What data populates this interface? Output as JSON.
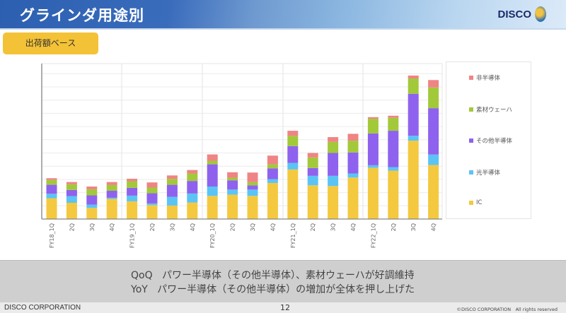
{
  "header": {
    "title": "グラインダ用途別",
    "logo_text": "DISCO"
  },
  "tag": "出荷額ベース",
  "chart_data": {
    "type": "bar",
    "stacked": true,
    "title": "",
    "xlabel": "",
    "ylabel": "",
    "y_unit": "gridlines (no y tick labels shown)",
    "ylim": [
      0,
      11
    ],
    "grid": true,
    "legend_position": "right",
    "categories": [
      "FY18_1Q",
      "2Q",
      "3Q",
      "4Q",
      "FY19_1Q",
      "2Q",
      "3Q",
      "4Q",
      "FY20_1Q",
      "2Q",
      "3Q",
      "4Q",
      "FY21_1Q",
      "2Q",
      "3Q",
      "4Q",
      "FY22_1Q",
      "2Q",
      "3Q",
      "4Q"
    ],
    "series": [
      {
        "name": "IC",
        "color": "#f4c93f",
        "values": [
          1.57,
          1.23,
          0.84,
          1.52,
          1.34,
          1.05,
          1.02,
          1.25,
          1.75,
          1.84,
          1.75,
          2.73,
          3.75,
          2.55,
          2.5,
          3.14,
          3.88,
          3.66,
          5.93,
          4.09
        ]
      },
      {
        "name": "光半導体",
        "color": "#5bc4f5",
        "values": [
          0.34,
          0.5,
          0.25,
          0.09,
          0.43,
          0.13,
          0.66,
          0.68,
          0.71,
          0.39,
          0.48,
          0.29,
          0.5,
          0.72,
          0.77,
          0.31,
          0.19,
          0.27,
          0.37,
          0.79
        ]
      },
      {
        "name": "その他半導体",
        "color": "#8e62ee",
        "values": [
          0.68,
          0.47,
          0.7,
          0.53,
          0.59,
          0.77,
          0.91,
          0.95,
          1.68,
          0.7,
          0.32,
          0.82,
          1.27,
          0.59,
          1.73,
          1.59,
          2.41,
          2.75,
          3.18,
          3.51
        ]
      },
      {
        "name": "素材ウェーハ",
        "color": "#a2c93a",
        "values": [
          0.36,
          0.43,
          0.46,
          0.43,
          0.5,
          0.43,
          0.45,
          0.57,
          0.27,
          0.2,
          0.25,
          0.3,
          0.77,
          0.8,
          0.84,
          0.89,
          1.11,
          0.98,
          1.16,
          1.57
        ]
      },
      {
        "name": "非半導体",
        "color": "#ef8484",
        "values": [
          0.14,
          0.17,
          0.21,
          0.23,
          0.19,
          0.39,
          0.26,
          0.26,
          0.48,
          0.41,
          0.72,
          0.66,
          0.39,
          0.34,
          0.36,
          0.52,
          0.12,
          0.16,
          0.22,
          0.56
        ]
      }
    ]
  },
  "legend_order": [
    "非半導体",
    "素材ウェーハ",
    "その他半導体",
    "光半導体",
    "IC"
  ],
  "comment": {
    "qoq_label": "QoQ",
    "qoq_text": "パワー半導体（その他半導体）、素材ウェーハが好調維持",
    "yoy_label": "YoY",
    "yoy_text": "パワー半導体（その他半導体）の増加が全体を押し上げた"
  },
  "footer": {
    "company": "DISCO CORPORATION",
    "page": "12",
    "copyright": "©DISCO CORPORATION　All rights reserved"
  }
}
